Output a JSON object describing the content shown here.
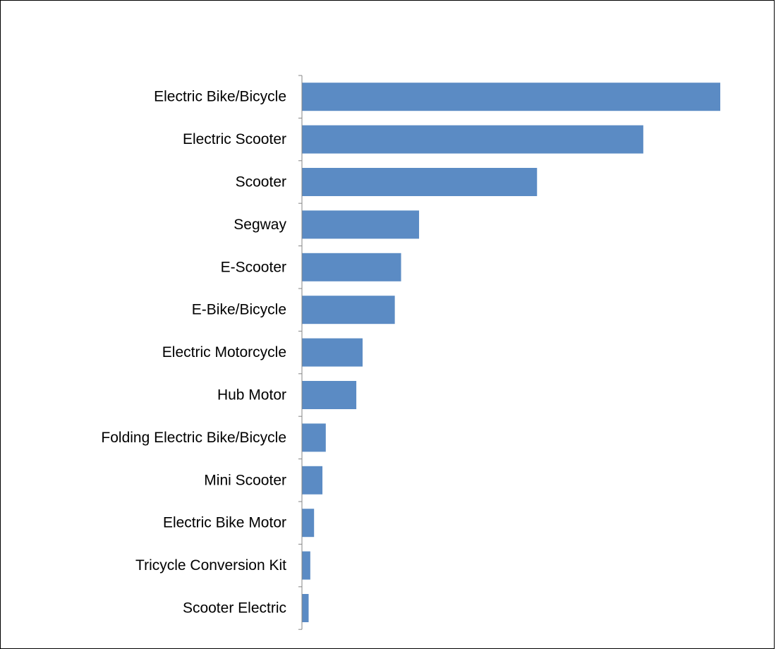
{
  "chart_data": {
    "type": "bar",
    "orientation": "horizontal",
    "categories": [
      "Electric Bike/Bicycle",
      "Electric Scooter",
      "Scooter",
      "Segway",
      "E-Scooter",
      "E-Bike/Bicycle",
      "Electric Motorcycle",
      "Hub Motor",
      "Folding Electric Bike/Bicycle",
      "Mini Scooter",
      "Electric Bike Motor",
      "Tricycle Conversion Kit",
      "Scooter Electric"
    ],
    "values": [
      100,
      81.6,
      56.2,
      28,
      23.7,
      22.2,
      14.5,
      13,
      5.7,
      4.9,
      2.9,
      2,
      1.6
    ],
    "title": "",
    "xlabel": "",
    "ylabel": "",
    "xlim": [
      0,
      100
    ],
    "value_axis_visible": false,
    "grid": false,
    "legend": "none",
    "bar_color": "#5B8BC4"
  }
}
